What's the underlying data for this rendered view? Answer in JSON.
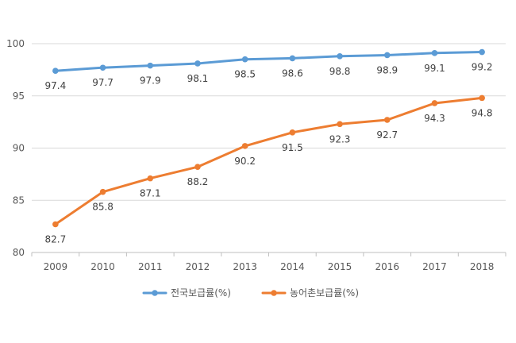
{
  "chart_data": {
    "type": "line",
    "title": "",
    "xlabel": "",
    "ylabel": "",
    "x": [
      "2009",
      "2010",
      "2011",
      "2012",
      "2013",
      "2014",
      "2015",
      "2016",
      "2017",
      "2018"
    ],
    "ylim": [
      80,
      100
    ],
    "yticks": [
      "80",
      "85",
      "90",
      "95",
      "100"
    ],
    "grid": true,
    "legend": "bottom",
    "series": [
      {
        "name": "전국보급률(%)",
        "color": "#5B9BD5",
        "values": [
          97.4,
          97.7,
          97.9,
          98.1,
          98.5,
          98.6,
          98.8,
          98.9,
          99.1,
          99.2
        ],
        "labels": [
          "97.4",
          "97.7",
          "97.9",
          "98.1",
          "98.5",
          "98.6",
          "98.8",
          "98.9",
          "99.1",
          "99.2"
        ]
      },
      {
        "name": "농어촌보급률(%)",
        "color": "#ED7D31",
        "values": [
          82.7,
          85.8,
          87.1,
          88.2,
          90.2,
          91.5,
          92.3,
          92.7,
          94.3,
          94.8
        ],
        "labels": [
          "82.7",
          "85.8",
          "87.1",
          "88.2",
          "90.2",
          "91.5",
          "92.3",
          "92.7",
          "94.3",
          "94.8"
        ]
      }
    ]
  }
}
